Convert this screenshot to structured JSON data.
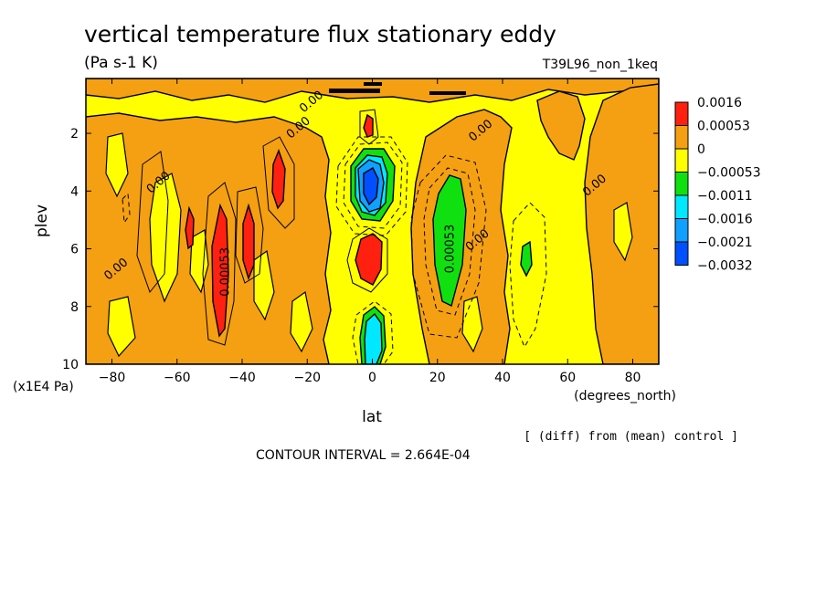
{
  "chart_data": {
    "type": "contour",
    "title": "vertical temperature flux stationary eddy",
    "units": "(Pa s-1 K)",
    "experiment": "T39L96_non_1keq",
    "xlabel": "lat",
    "xunits": "(degrees_north)",
    "ylabel": "plev",
    "yunits": "(x1E4 Pa)",
    "xlim": [
      -88,
      88
    ],
    "ylim": [
      10,
      0.1
    ],
    "xticks": [
      -80,
      -60,
      -40,
      -20,
      0,
      20,
      40,
      60,
      80
    ],
    "xtick_labels": [
      "-80",
      "-60",
      "-40",
      "-20",
      "0",
      "20",
      "40",
      "60",
      "80"
    ],
    "yticks": [
      2,
      4,
      6,
      8,
      10
    ],
    "ytick_labels": [
      "2",
      "4",
      "6",
      "8",
      "10"
    ],
    "contour_interval_text": "CONTOUR INTERVAL = 2.664E-04",
    "note": "[ (diff) from (mean) control ]",
    "legend": {
      "labels": [
        "0.0016",
        "0.00053",
        "0",
        "−0.00053",
        "−0.0011",
        "−0.0016",
        "−0.0021",
        "−0.0032"
      ],
      "colors": [
        "#ff2010",
        "#f5a012",
        "#ffff00",
        "#10e010",
        "#00e8ff",
        "#10a0ff",
        "#0050ff"
      ]
    },
    "contour_labels": [
      {
        "text": "0.00",
        "lat": -18,
        "plev": 1.0
      },
      {
        "text": "0.00",
        "lat": -22,
        "plev": 1.9
      },
      {
        "text": "0.00",
        "lat": -65,
        "plev": 3.8
      },
      {
        "text": "0.00",
        "lat": -78,
        "plev": 6.8
      },
      {
        "text": "0.00053",
        "lat": -44,
        "plev": 6.8
      },
      {
        "text": "0.00053",
        "lat": 25,
        "plev": 6.0
      },
      {
        "text": "0.00",
        "lat": 33,
        "plev": 5.8
      },
      {
        "text": "0.00",
        "lat": 34,
        "plev": 2.0
      },
      {
        "text": "0.00",
        "lat": 69,
        "plev": 3.9
      }
    ],
    "features": [
      {
        "kind": "positive_max",
        "lat": -47,
        "plev_top": 4.5,
        "plev_bottom": 8.8,
        "level": "0.0016"
      },
      {
        "kind": "positive_max",
        "lat": -38,
        "plev_top": 4.5,
        "plev_bottom": 7.0,
        "level": "0.0016"
      },
      {
        "kind": "positive_max",
        "lat": -28,
        "plev_top": 2.8,
        "plev_bottom": 4.5,
        "level": "0.0016"
      },
      {
        "kind": "positive_max",
        "lat": 0,
        "plev_top": 1.4,
        "plev_bottom": 2.1,
        "level": "0.0016"
      },
      {
        "kind": "positive_max",
        "lat": 0,
        "plev_top": 5.6,
        "plev_bottom": 7.3,
        "level": "0.0016"
      },
      {
        "kind": "negative_min",
        "lat": 0,
        "plev_top": 2.7,
        "plev_bottom": 4.6,
        "level": "-0.0032"
      },
      {
        "kind": "negative_min",
        "lat": 0,
        "plev_top": 8.1,
        "plev_bottom": 10.0,
        "level": "-0.0021"
      },
      {
        "kind": "negative_min",
        "lat": 25,
        "plev_top": 3.4,
        "plev_bottom": 8.3,
        "level": "-0.0011"
      },
      {
        "kind": "negative_min",
        "lat": 47,
        "plev_top": 5.7,
        "plev_bottom": 6.7,
        "level": "-0.0011"
      }
    ]
  }
}
